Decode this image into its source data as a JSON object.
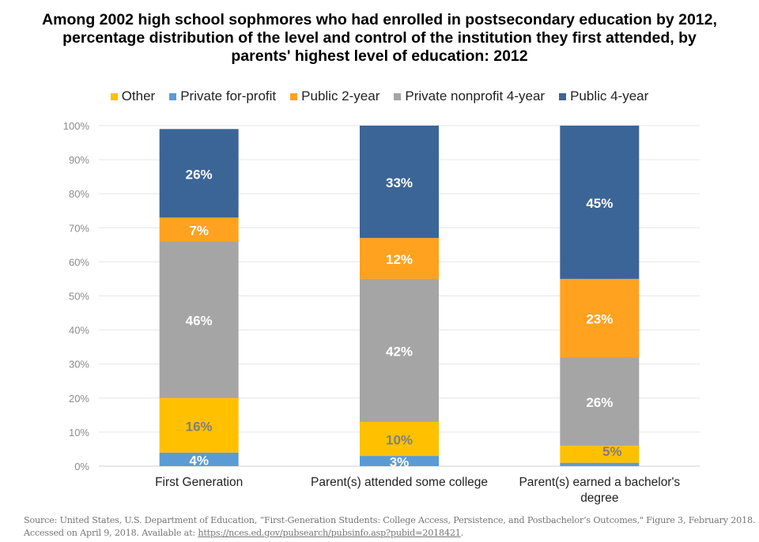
{
  "chart_data": {
    "type": "bar",
    "stacked": true,
    "title": "Among 2002 high school sophmores who had enrolled in postsecondary education by 2012, percentage distribution of the level and control of the institution they first attended, by parents' highest level of education: 2012",
    "categories": [
      "First Generation",
      "Parent(s) attended some college",
      "Parent(s) earned a bachelor's degree"
    ],
    "series": [
      {
        "name": "Private for-profit",
        "color": "#5B9BD5",
        "label_color": "#FFFFFF",
        "values": [
          4,
          3,
          1
        ]
      },
      {
        "name": "Other",
        "color": "#FFC000",
        "label_color": "#7F7F7F",
        "values": [
          16,
          10,
          5
        ]
      },
      {
        "name": "Private nonprofit 4-year",
        "color": "#A5A5A5",
        "label_color": "#FFFFFF",
        "values": [
          46,
          42,
          26
        ]
      },
      {
        "name": "Public 2-year",
        "color": "#FFA21F",
        "label_color": "#FFFFFF",
        "values": [
          7,
          12,
          23
        ]
      },
      {
        "name": "Public 4-year",
        "color": "#3B6597",
        "label_color": "#FFFFFF",
        "values": [
          26,
          33,
          45
        ]
      }
    ],
    "legend_order": [
      "Other",
      "Private for-profit",
      "Public 2-year",
      "Private nonprofit 4-year",
      "Public 4-year"
    ],
    "legend_placement": "top",
    "ylim": [
      0,
      100
    ],
    "yticks": [
      "0%",
      "10%",
      "20%",
      "30%",
      "40%",
      "50%",
      "60%",
      "70%",
      "80%",
      "90%",
      "100%"
    ],
    "grid": true,
    "xlabel": "",
    "ylabel": ""
  },
  "source": {
    "text": "Source: United States, U.S. Department of Education, “First-Generation Students: College Access, Persistence, and Postbachelor’s Outcomes,\" Figure 3, February 2018. Accessed on April 9, 2018. Available at: ",
    "link": "https://nces.ed.gov/pubsearch/pubsinfo.asp?pubid=2018421",
    "tail": "."
  }
}
